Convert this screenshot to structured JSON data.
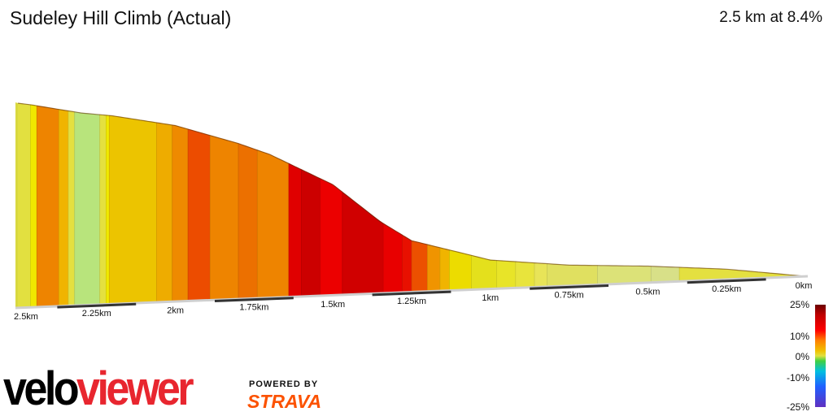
{
  "header": {
    "title": "Sudeley Hill Climb (Actual)",
    "summary": "2.5 km at 8.4%"
  },
  "chart_data": {
    "type": "area",
    "title": "Sudeley Hill Climb (Actual)",
    "xlabel": "",
    "ylabel": "",
    "x_direction": "reversed",
    "xlim": [
      0,
      2.5
    ],
    "x_ticks": [
      "2.5km",
      "2.25km",
      "2km",
      "1.75km",
      "1.5km",
      "1.25km",
      "1km",
      "0.75km",
      "0.5km",
      "0.25km",
      "0km"
    ],
    "profile": [
      {
        "km": 2.5,
        "rel": 1.0
      },
      {
        "km": 2.46,
        "rel": 0.99
      },
      {
        "km": 2.3,
        "rel": 0.94
      },
      {
        "km": 2.2,
        "rel": 0.92
      },
      {
        "km": 2.0,
        "rel": 0.86
      },
      {
        "km": 1.8,
        "rel": 0.76
      },
      {
        "km": 1.7,
        "rel": 0.7
      },
      {
        "km": 1.5,
        "rel": 0.54
      },
      {
        "km": 1.35,
        "rel": 0.35
      },
      {
        "km": 1.25,
        "rel": 0.25
      },
      {
        "km": 1.0,
        "rel": 0.14
      },
      {
        "km": 0.75,
        "rel": 0.1
      },
      {
        "km": 0.5,
        "rel": 0.08
      },
      {
        "km": 0.25,
        "rel": 0.05
      },
      {
        "km": 0.0,
        "rel": 0.0
      }
    ],
    "segments": [
      {
        "from": 2.5,
        "to": 2.46,
        "color": "#e2e040"
      },
      {
        "from": 2.46,
        "to": 2.44,
        "color": "#f0e800"
      },
      {
        "from": 2.44,
        "to": 2.37,
        "color": "#ee8400"
      },
      {
        "from": 2.37,
        "to": 2.34,
        "color": "#f0b400"
      },
      {
        "from": 2.34,
        "to": 2.32,
        "color": "#e4e040"
      },
      {
        "from": 2.32,
        "to": 2.24,
        "color": "#b8e47c"
      },
      {
        "from": 2.24,
        "to": 2.22,
        "color": "#e4e040"
      },
      {
        "from": 2.22,
        "to": 2.21,
        "color": "#f0e800"
      },
      {
        "from": 2.21,
        "to": 2.06,
        "color": "#ecc400"
      },
      {
        "from": 2.06,
        "to": 2.01,
        "color": "#eeac00"
      },
      {
        "from": 2.01,
        "to": 1.96,
        "color": "#ee8a00"
      },
      {
        "from": 1.96,
        "to": 1.89,
        "color": "#ec4c00"
      },
      {
        "from": 1.89,
        "to": 1.8,
        "color": "#ee8400"
      },
      {
        "from": 1.8,
        "to": 1.74,
        "color": "#ec7000"
      },
      {
        "from": 1.74,
        "to": 1.64,
        "color": "#ee8400"
      },
      {
        "from": 1.64,
        "to": 1.6,
        "color": "#e00000"
      },
      {
        "from": 1.6,
        "to": 1.54,
        "color": "#cc0000"
      },
      {
        "from": 1.54,
        "to": 1.47,
        "color": "#ec0000"
      },
      {
        "from": 1.47,
        "to": 1.34,
        "color": "#d00000"
      },
      {
        "from": 1.34,
        "to": 1.28,
        "color": "#e80000"
      },
      {
        "from": 1.28,
        "to": 1.25,
        "color": "#e81000"
      },
      {
        "from": 1.25,
        "to": 1.2,
        "color": "#ec5000"
      },
      {
        "from": 1.2,
        "to": 1.16,
        "color": "#f09400"
      },
      {
        "from": 1.16,
        "to": 1.13,
        "color": "#f0b400"
      },
      {
        "from": 1.13,
        "to": 1.06,
        "color": "#ecdc00"
      },
      {
        "from": 1.06,
        "to": 0.98,
        "color": "#e4e01c"
      },
      {
        "from": 0.98,
        "to": 0.92,
        "color": "#e8e428"
      },
      {
        "from": 0.92,
        "to": 0.86,
        "color": "#e8e43c"
      },
      {
        "from": 0.86,
        "to": 0.82,
        "color": "#e8e458"
      },
      {
        "from": 0.82,
        "to": 0.66,
        "color": "#e0e060"
      },
      {
        "from": 0.66,
        "to": 0.49,
        "color": "#dce278"
      },
      {
        "from": 0.49,
        "to": 0.4,
        "color": "#d8e088"
      },
      {
        "from": 0.4,
        "to": 0.0,
        "color": "#e4e040"
      }
    ]
  },
  "legend": {
    "labels": [
      "25%",
      "10%",
      "0%",
      "-10%",
      "-25%"
    ],
    "label_values": [
      25,
      10,
      0,
      -10,
      -25
    ]
  },
  "branding": {
    "velo": "velo",
    "viewer": "viewer",
    "powered_by": "POWERED BY",
    "strava": "STRAVA"
  }
}
